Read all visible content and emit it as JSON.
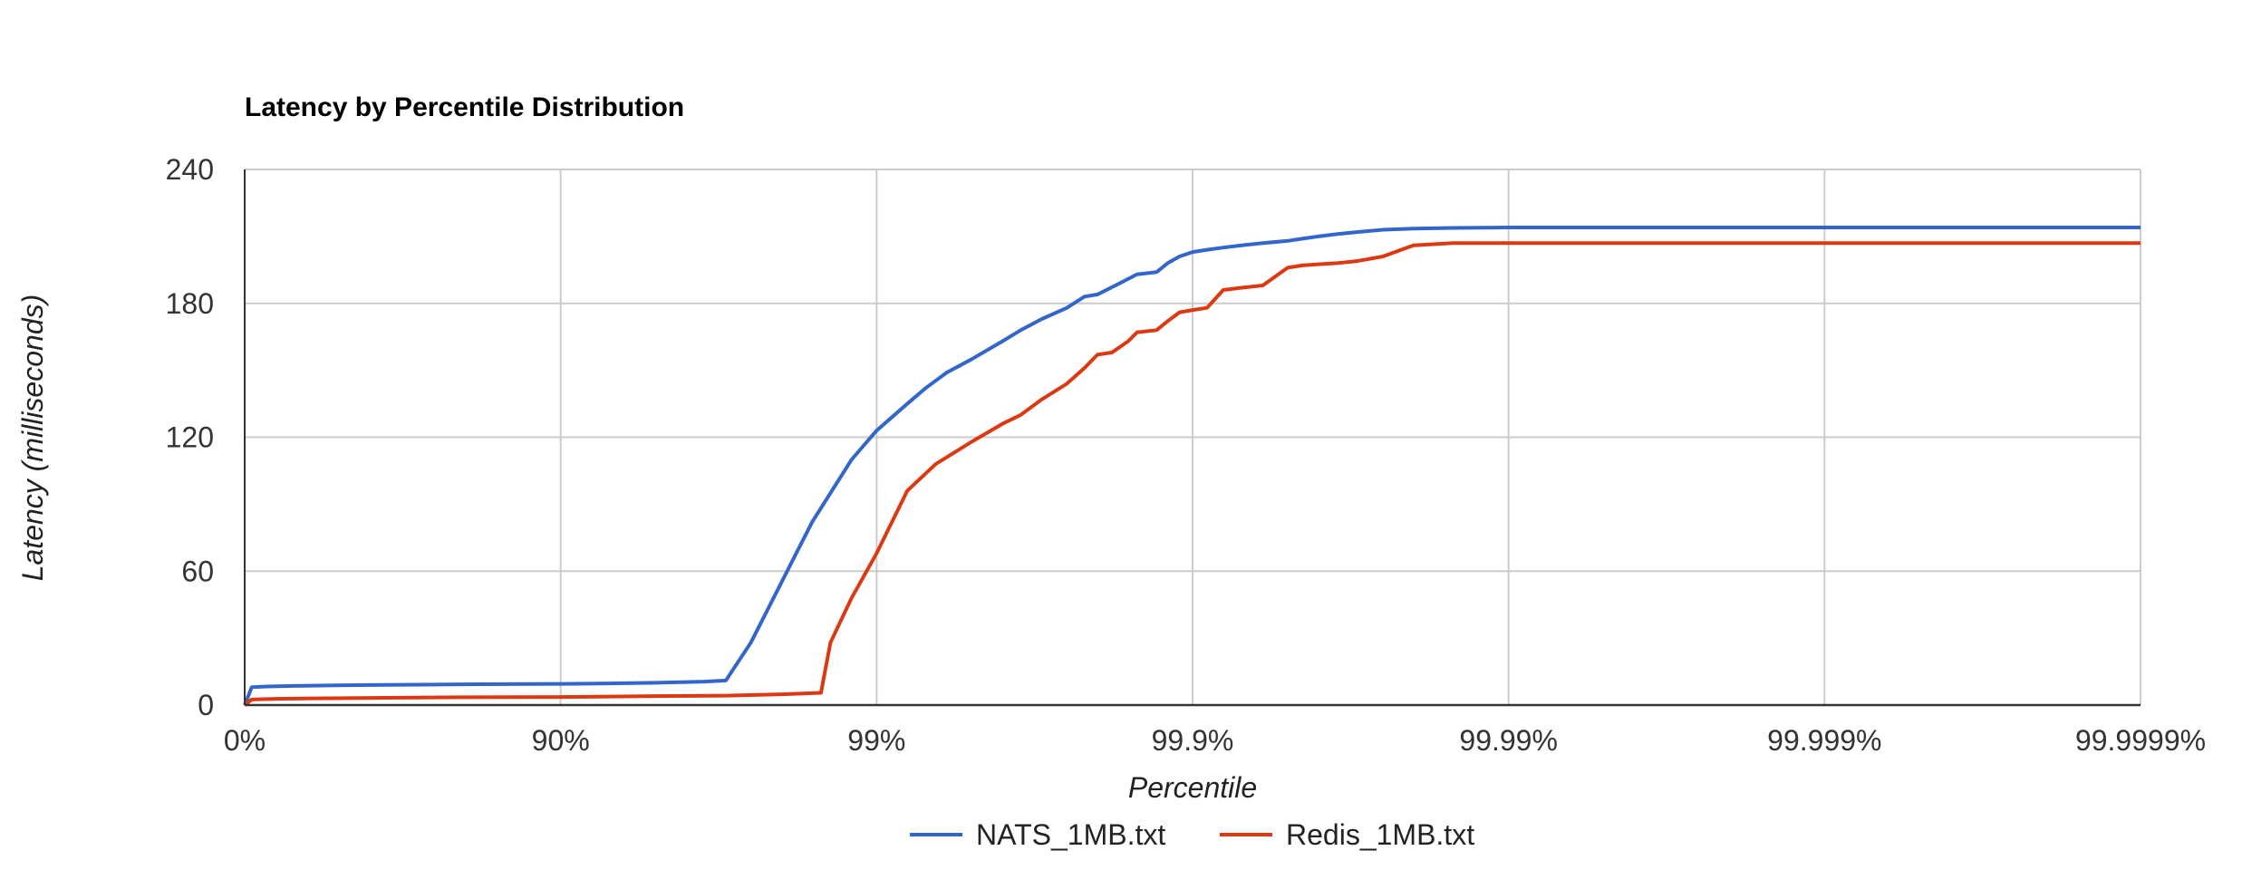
{
  "chart_data": {
    "type": "line",
    "title": "Latency by Percentile Distribution",
    "xlabel": "Percentile",
    "ylabel": "Latency (milliseconds)",
    "x_scale": "log-percentile",
    "x_tick_labels": [
      "0%",
      "90%",
      "99%",
      "99.9%",
      "99.99%",
      "99.999%",
      "99.9999%"
    ],
    "x_ticks": [
      0,
      90,
      99,
      99.9,
      99.99,
      99.999,
      99.9999
    ],
    "y_tick_labels": [
      "0",
      "60",
      "120",
      "180",
      "240"
    ],
    "y_ticks": [
      0,
      60,
      120,
      180,
      240
    ],
    "ylim": [
      0,
      240
    ],
    "grid": true,
    "legend_position": "bottom",
    "series": [
      {
        "name": "NATS_1MB.txt",
        "color": "#3366cc",
        "points": [
          [
            0,
            0
          ],
          [
            5,
            8
          ],
          [
            15,
            8.3
          ],
          [
            30,
            8.6
          ],
          [
            45,
            8.8
          ],
          [
            60,
            9
          ],
          [
            75,
            9.2
          ],
          [
            85,
            9.4
          ],
          [
            90,
            9.5
          ],
          [
            93,
            9.7
          ],
          [
            95,
            10
          ],
          [
            96.5,
            10.5
          ],
          [
            97,
            11
          ],
          [
            97.5,
            28
          ],
          [
            98,
            55
          ],
          [
            98.4,
            82
          ],
          [
            98.6,
            95
          ],
          [
            98.8,
            110
          ],
          [
            99,
            123
          ],
          [
            99.2,
            135
          ],
          [
            99.3,
            142
          ],
          [
            99.4,
            149
          ],
          [
            99.5,
            155
          ],
          [
            99.6,
            163
          ],
          [
            99.65,
            168
          ],
          [
            99.7,
            173
          ],
          [
            99.75,
            178
          ],
          [
            99.78,
            183
          ],
          [
            99.8,
            184
          ],
          [
            99.83,
            189
          ],
          [
            99.85,
            193
          ],
          [
            99.87,
            194
          ],
          [
            99.88,
            198
          ],
          [
            99.89,
            201
          ],
          [
            99.9,
            203
          ],
          [
            99.91,
            204
          ],
          [
            99.92,
            205
          ],
          [
            99.93,
            206
          ],
          [
            99.94,
            207
          ],
          [
            99.95,
            208
          ],
          [
            99.955,
            209
          ],
          [
            99.96,
            210
          ],
          [
            99.965,
            211
          ],
          [
            99.97,
            212
          ],
          [
            99.975,
            213
          ],
          [
            99.98,
            213.5
          ],
          [
            99.985,
            213.8
          ],
          [
            99.99,
            214
          ],
          [
            99.999,
            214
          ],
          [
            99.9999,
            214
          ]
        ]
      },
      {
        "name": "Redis_1MB.txt",
        "color": "#dc3912",
        "points": [
          [
            0,
            0
          ],
          [
            5,
            2.5
          ],
          [
            20,
            2.8
          ],
          [
            40,
            3
          ],
          [
            60,
            3.2
          ],
          [
            80,
            3.5
          ],
          [
            90,
            3.6
          ],
          [
            95,
            4
          ],
          [
            97,
            4.2
          ],
          [
            98,
            4.8
          ],
          [
            98.5,
            5.5
          ],
          [
            98.6,
            28
          ],
          [
            98.8,
            48
          ],
          [
            99,
            68
          ],
          [
            99.2,
            96
          ],
          [
            99.35,
            108
          ],
          [
            99.5,
            118
          ],
          [
            99.6,
            126
          ],
          [
            99.65,
            130
          ],
          [
            99.7,
            137
          ],
          [
            99.75,
            144
          ],
          [
            99.78,
            151
          ],
          [
            99.8,
            157
          ],
          [
            99.82,
            158
          ],
          [
            99.84,
            163
          ],
          [
            99.85,
            167
          ],
          [
            99.87,
            168
          ],
          [
            99.88,
            172
          ],
          [
            99.89,
            176
          ],
          [
            99.9,
            177
          ],
          [
            99.91,
            178
          ],
          [
            99.92,
            186
          ],
          [
            99.93,
            187
          ],
          [
            99.94,
            188
          ],
          [
            99.95,
            196
          ],
          [
            99.955,
            197
          ],
          [
            99.96,
            197.5
          ],
          [
            99.965,
            198
          ],
          [
            99.97,
            199
          ],
          [
            99.975,
            201
          ],
          [
            99.98,
            206
          ],
          [
            99.985,
            207
          ],
          [
            99.99,
            207
          ],
          [
            99.999,
            207
          ],
          [
            99.9999,
            207
          ]
        ]
      }
    ]
  }
}
